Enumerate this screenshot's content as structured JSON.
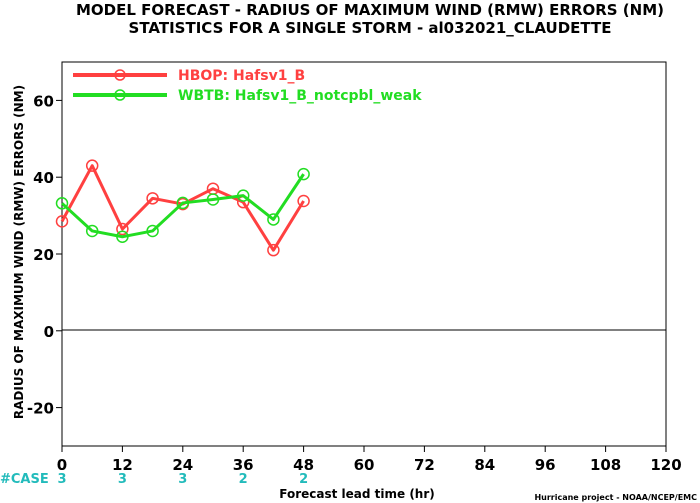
{
  "chart_data": {
    "type": "line",
    "title": "MODEL FORECAST - RADIUS OF MAXIMUM WIND (RMW) ERRORS (NM)",
    "subtitle": "STATISTICS FOR A SINGLE STORM - al032021_CLAUDETTE",
    "xlabel": "Forecast lead time (hr)",
    "ylabel": "RADIUS OF MAXIMUM WIND (RMW) ERRORS (NM)",
    "xlim": [
      0,
      120
    ],
    "ylim": [
      -30,
      70
    ],
    "x_ticks": [
      0,
      12,
      24,
      36,
      48,
      60,
      72,
      84,
      96,
      108,
      120
    ],
    "y_ticks": [
      -20,
      0,
      20,
      40,
      60
    ],
    "y_tick_labels": [
      "-20",
      "0",
      "20",
      "40",
      "60"
    ],
    "legend_position": "top-left",
    "grid": false,
    "series": [
      {
        "name": "HBOP: Hafsv1_B",
        "color": "#ff4040",
        "x": [
          0,
          6,
          12,
          18,
          24,
          30,
          36,
          42,
          48
        ],
        "values": [
          28.5,
          43.0,
          26.5,
          34.5,
          33.0,
          37.0,
          33.5,
          21.0,
          33.8
        ]
      },
      {
        "name": "WBTB: Hafsv1_B_notcpbl_weak",
        "color": "#22dd22",
        "x": [
          0,
          6,
          12,
          18,
          24,
          30,
          36,
          42,
          48
        ],
        "values": [
          33.2,
          26.0,
          24.5,
          26.0,
          33.3,
          34.2,
          35.2,
          29.0,
          40.8
        ]
      }
    ],
    "case_label": "#CASE",
    "case_x": [
      0,
      12,
      24,
      36,
      48
    ],
    "case_counts": [
      "3",
      "3",
      "3",
      "2",
      "2"
    ],
    "case_color": "#22bbbb",
    "credit": "Hurricane project - NOAA/NCEP/EMC"
  }
}
